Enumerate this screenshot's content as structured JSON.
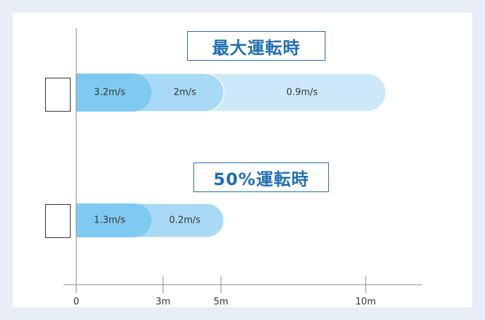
{
  "chart_data": {
    "type": "bar",
    "orientation": "horizontal",
    "axis": {
      "ticks": [
        {
          "value": 0,
          "label": "0"
        },
        {
          "value": 3,
          "label": "3m"
        },
        {
          "value": 5,
          "label": "5m"
        },
        {
          "value": 10,
          "label": "10m"
        }
      ],
      "xlim": [
        0,
        12
      ]
    },
    "groups": [
      {
        "title": "最大運転時",
        "segments": [
          {
            "end": 2.6,
            "label": "3.2m/s",
            "color": "#7fcaf0"
          },
          {
            "end": 5.1,
            "label": "2m/s",
            "color": "#a9daf5"
          },
          {
            "end": 10.7,
            "label": "0.9m/s",
            "color": "#cde9f9"
          }
        ]
      },
      {
        "title": "50%運転時",
        "segments": [
          {
            "end": 2.6,
            "label": "1.3m/s",
            "color": "#7fcaf0"
          },
          {
            "end": 5.1,
            "label": "0.2m/s",
            "color": "#a9daf5"
          }
        ]
      }
    ]
  }
}
